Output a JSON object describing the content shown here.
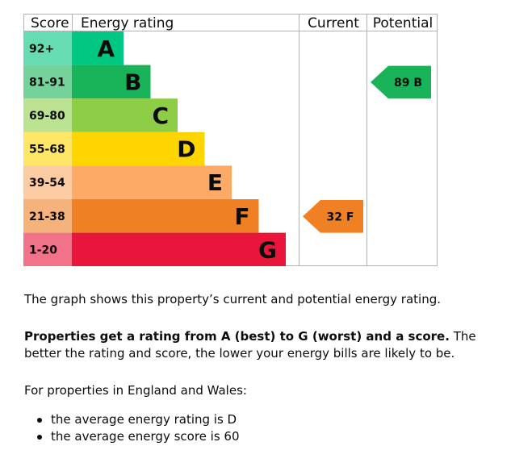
{
  "chart_data": {
    "type": "table",
    "headers": {
      "score": "Score",
      "rating": "Energy rating",
      "current": "Current",
      "potential": "Potential"
    },
    "bands": [
      {
        "range": "92+",
        "letter": "A",
        "color": "#00c781",
        "light": "#66dcb3",
        "letter_color": "#0b0c0c",
        "score_color": "#0b0c0c"
      },
      {
        "range": "81-91",
        "letter": "B",
        "color": "#19b459",
        "light": "#75d29b",
        "letter_color": "#0b0c0c",
        "score_color": "#0b0c0c"
      },
      {
        "range": "69-80",
        "letter": "C",
        "color": "#8dce46",
        "light": "#bbe290",
        "letter_color": "#0b0c0c",
        "score_color": "#0b0c0c"
      },
      {
        "range": "55-68",
        "letter": "D",
        "color": "#ffd500",
        "light": "#ffe666",
        "letter_color": "#0b0c0c",
        "score_color": "#0b0c0c"
      },
      {
        "range": "39-54",
        "letter": "E",
        "color": "#fcaa65",
        "light": "#fdcca3",
        "letter_color": "#0b0c0c",
        "score_color": "#0b0c0c"
      },
      {
        "range": "21-38",
        "letter": "F",
        "color": "#ef8023",
        "light": "#f5b37b",
        "letter_color": "#0b0c0c",
        "score_color": "#0b0c0c"
      },
      {
        "range": "1-20",
        "letter": "G",
        "color": "#e9153b",
        "light": "#f27389",
        "letter_color": "#0b0c0c",
        "score_color": "#0b0c0c"
      }
    ],
    "current": {
      "score": 32,
      "letter": "F",
      "label": "32 F",
      "color": "#ef8023"
    },
    "potential": {
      "score": 89,
      "letter": "B",
      "label": "89 B",
      "color": "#19b459"
    }
  },
  "text": {
    "p1": "The graph shows this property’s current and potential energy rating.",
    "p2_bold": "Properties get a rating from A (best) to G (worst) and a score.",
    "p2_rest": " The better the rating and score, the lower your energy bills are likely to be.",
    "p3": "For properties in England and Wales:",
    "bullets": [
      "the average energy rating is D",
      "the average energy score is 60"
    ]
  }
}
